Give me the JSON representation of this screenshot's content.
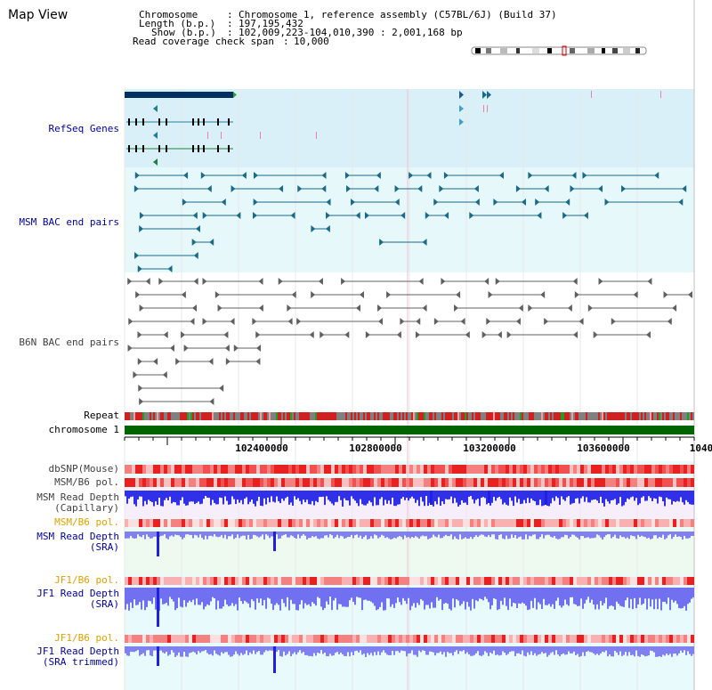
{
  "title": "Map View",
  "info": {
    "chromosome_label": "Chromosome",
    "chromosome_value": "Chromosome 1, reference assembly (C57BL/6J) (Build 37)",
    "length_label": "Length (b.p.)",
    "length_value": "197,195,432",
    "show_label": "Show (b.p.)",
    "show_value": "102,009,223-104,010,390 : 2,001,168 bp",
    "span_label": "Read coverage check span",
    "span_value": "10,000"
  },
  "tracks": {
    "refseq": "RefSeq Genes",
    "msm_bac": "MSM BAC end pairs",
    "b6n_bac": "B6N BAC end pairs",
    "repeat": "Repeat",
    "chromosome": "chromosome 1",
    "dbsnp": "dbSNP(Mouse)",
    "msm_b6_pol_1": "MSM/B6 pol.",
    "msm_depth_cap_1": "MSM Read Depth",
    "msm_depth_cap_2": "(Capillary)",
    "msm_b6_pol_2": "MSM/B6 pol.",
    "msm_depth_sra_1": "MSM Read Depth",
    "msm_depth_sra_2": "(SRA)",
    "jf1_b6_pol_1": "JF1/B6 pol.",
    "jf1_depth_sra_1": "JF1 Read Depth",
    "jf1_depth_sra_2": "(SRA)",
    "jf1_b6_pol_2": "JF1/B6 pol.",
    "jf1_depth_trim_1": "JF1 Read Depth",
    "jf1_depth_trim_2": "(SRA trimmed)"
  },
  "axis_ticks": [
    "102400000",
    "102800000",
    "103200000",
    "103600000",
    "1040"
  ],
  "colors": {
    "refseq_bg": "#daf0f8",
    "bac_bg": "#e6f8fa",
    "msm_color": "#1a6a8a",
    "b6n_color": "#606060",
    "chromosome_bar": "#006400",
    "snp_red": "#e03030",
    "depth_blue": "#2020e0",
    "depth_light_blue": "#8080f0"
  }
}
